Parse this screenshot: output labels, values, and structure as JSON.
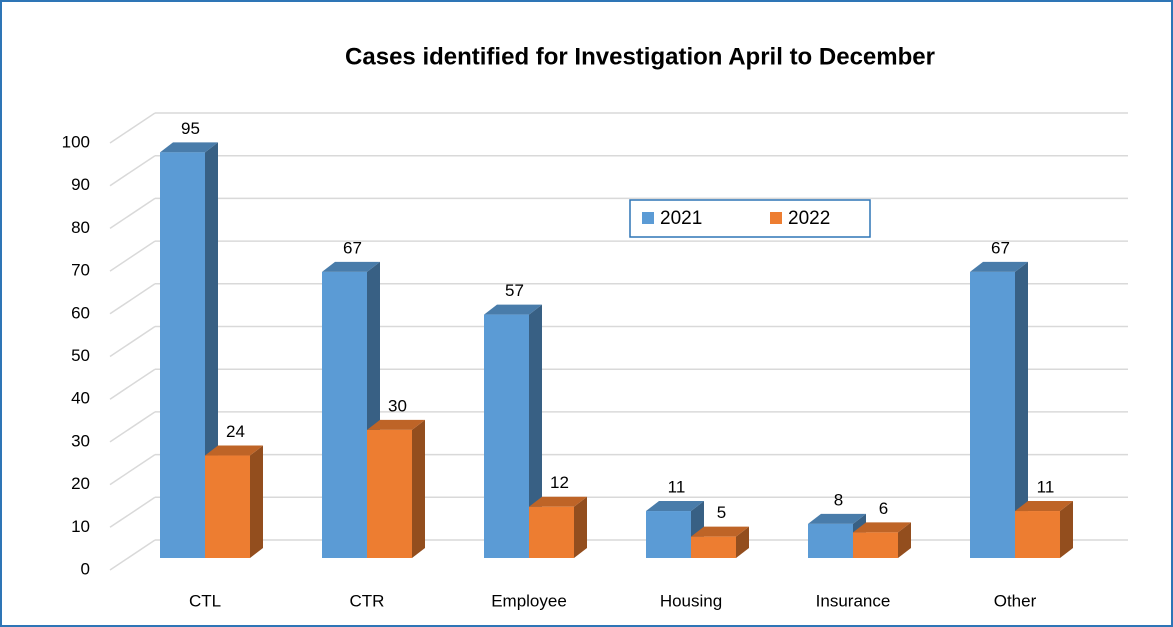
{
  "chart_data": {
    "type": "bar3d",
    "title": "Cases identified for Investigation April to December",
    "categories": [
      "CTL",
      "CTR",
      "Employee",
      "Housing",
      "Insurance",
      "Other"
    ],
    "series": [
      {
        "name": "2021",
        "color": "#5b9bd5",
        "values": [
          95,
          67,
          57,
          11,
          8,
          67
        ]
      },
      {
        "name": "2022",
        "color": "#ed7d31",
        "values": [
          24,
          30,
          12,
          5,
          6,
          11
        ]
      }
    ],
    "ylim": [
      0,
      100
    ],
    "yticks": [
      0,
      10,
      20,
      30,
      40,
      50,
      60,
      70,
      80,
      90,
      100
    ],
    "grid": true,
    "legend": "top-right"
  }
}
